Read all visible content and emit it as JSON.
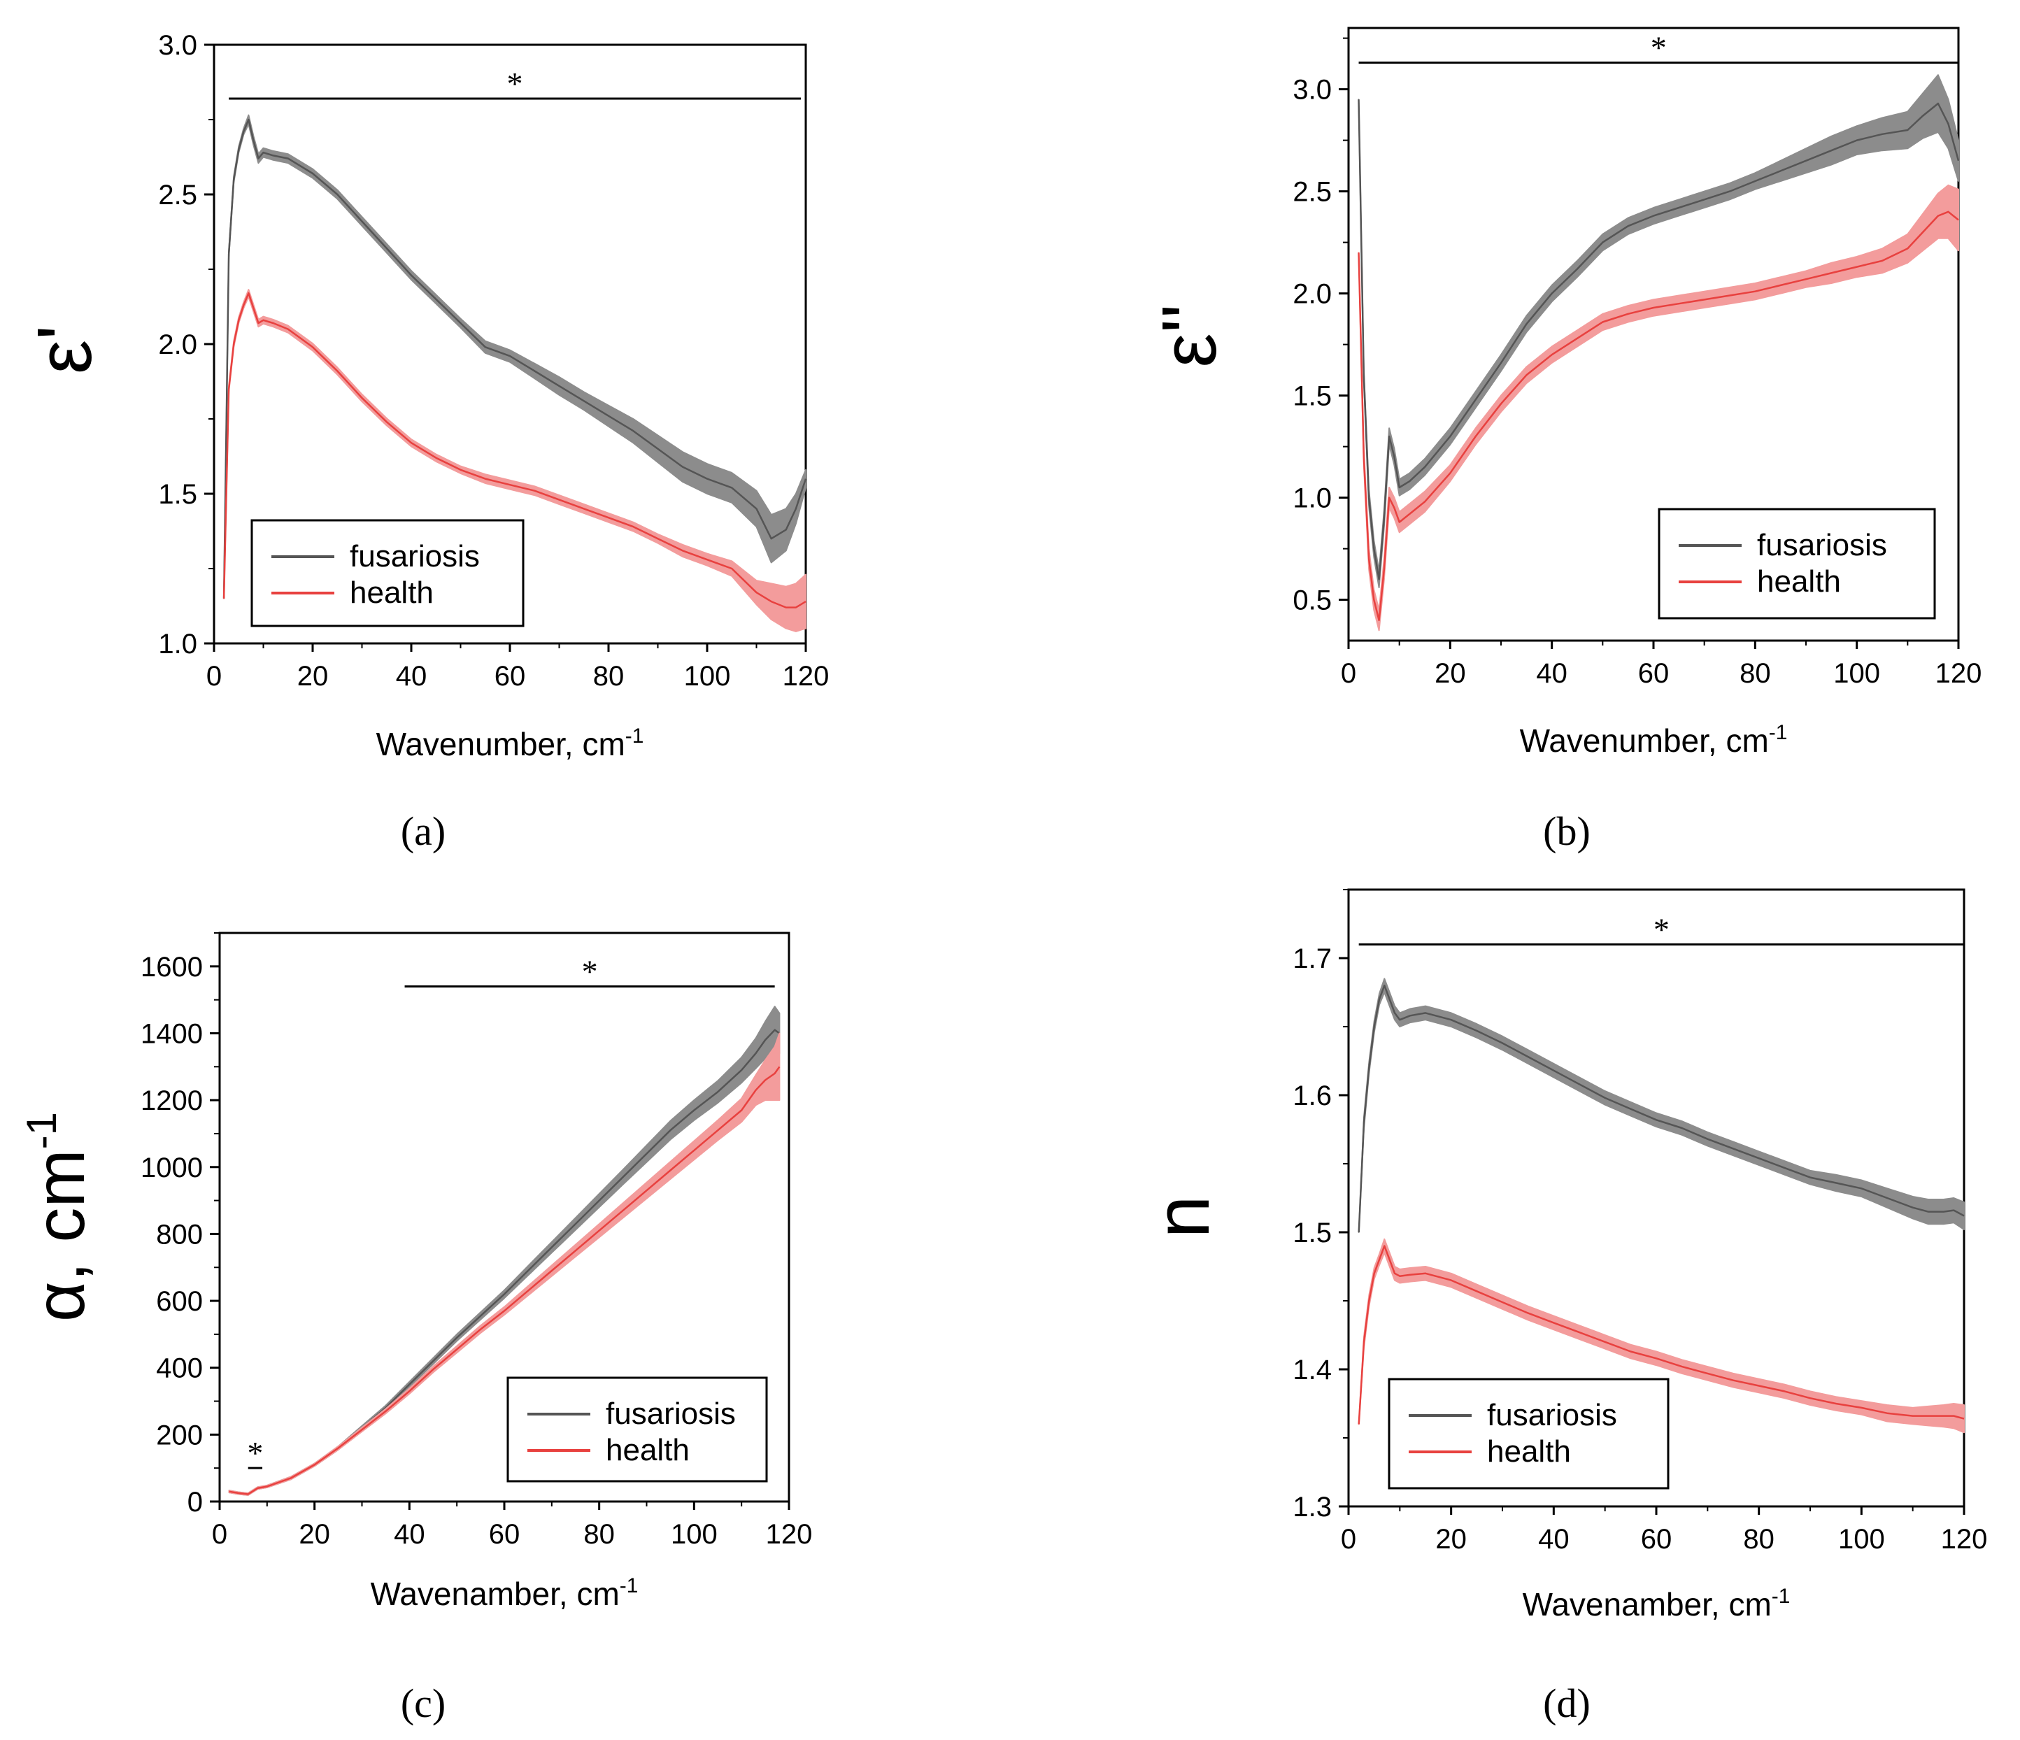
{
  "figure": {
    "labels": [
      "(a)",
      "(b)",
      "(c)",
      "(d)"
    ]
  },
  "colors": {
    "fusariosis_line": "#555555",
    "fusariosis_band": "#8c8c8c",
    "health_line": "#e8413f",
    "health_band": "#f39c9c",
    "axis": "#000000"
  },
  "chart_data": [
    {
      "id": "a",
      "type": "line",
      "panel_label": "(a)",
      "title": "",
      "xlabel": "Wavenumber, cm",
      "xlabel_sup": "-1",
      "ylabel": "ε'",
      "xlim": [
        0,
        120
      ],
      "ylim": [
        1.0,
        3.0
      ],
      "xticks": [
        0,
        20,
        40,
        60,
        80,
        100,
        120
      ],
      "xtick_labels": [
        "0",
        "20",
        "40",
        "60",
        "80",
        "100",
        "120"
      ],
      "yticks": [
        1.0,
        1.5,
        2.0,
        2.5,
        3.0
      ],
      "ytick_labels": [
        "1.0",
        "1.5",
        "2.0",
        "2.5",
        "3.0"
      ],
      "legend_position": "bottom-left",
      "significance": [
        {
          "from": 3,
          "to": 119,
          "y": 2.82,
          "label": "*"
        }
      ],
      "series": [
        {
          "name": "fusariosis",
          "x": [
            2,
            3,
            4,
            5,
            6,
            7,
            8,
            9,
            10,
            12,
            15,
            20,
            25,
            30,
            35,
            40,
            45,
            50,
            55,
            60,
            65,
            70,
            75,
            80,
            85,
            90,
            95,
            100,
            105,
            110,
            113,
            116,
            118,
            120
          ],
          "values": [
            1.15,
            2.3,
            2.55,
            2.65,
            2.71,
            2.75,
            2.68,
            2.62,
            2.64,
            2.63,
            2.62,
            2.57,
            2.5,
            2.41,
            2.32,
            2.23,
            2.15,
            2.07,
            1.99,
            1.96,
            1.91,
            1.86,
            1.81,
            1.76,
            1.71,
            1.65,
            1.59,
            1.55,
            1.52,
            1.45,
            1.35,
            1.38,
            1.45,
            1.55
          ],
          "err": [
            0,
            0.01,
            0.01,
            0.01,
            0.01,
            0.015,
            0.015,
            0.015,
            0.015,
            0.015,
            0.015,
            0.015,
            0.015,
            0.015,
            0.015,
            0.015,
            0.015,
            0.015,
            0.02,
            0.02,
            0.025,
            0.03,
            0.03,
            0.035,
            0.04,
            0.045,
            0.05,
            0.05,
            0.05,
            0.06,
            0.08,
            0.07,
            0.05,
            0.03
          ]
        },
        {
          "name": "health",
          "x": [
            2,
            3,
            4,
            5,
            6,
            7,
            8,
            9,
            10,
            12,
            15,
            20,
            25,
            30,
            35,
            40,
            45,
            50,
            55,
            60,
            65,
            70,
            75,
            80,
            85,
            90,
            95,
            100,
            105,
            110,
            113,
            116,
            118,
            120
          ],
          "values": [
            1.15,
            1.85,
            2.0,
            2.08,
            2.13,
            2.17,
            2.12,
            2.07,
            2.08,
            2.07,
            2.05,
            1.99,
            1.91,
            1.82,
            1.74,
            1.67,
            1.62,
            1.58,
            1.55,
            1.53,
            1.51,
            1.48,
            1.45,
            1.42,
            1.39,
            1.35,
            1.31,
            1.28,
            1.25,
            1.17,
            1.14,
            1.12,
            1.12,
            1.14
          ],
          "err": [
            0,
            0.01,
            0.01,
            0.01,
            0.01,
            0.012,
            0.012,
            0.012,
            0.012,
            0.012,
            0.012,
            0.012,
            0.012,
            0.012,
            0.012,
            0.012,
            0.012,
            0.012,
            0.015,
            0.015,
            0.015,
            0.015,
            0.015,
            0.015,
            0.015,
            0.015,
            0.02,
            0.02,
            0.025,
            0.04,
            0.06,
            0.07,
            0.08,
            0.09
          ]
        }
      ]
    },
    {
      "id": "b",
      "type": "line",
      "panel_label": "(b)",
      "title": "",
      "xlabel": "Wavenumber, cm",
      "xlabel_sup": "-1",
      "ylabel": "ε''",
      "xlim": [
        0,
        120
      ],
      "ylim": [
        0.3,
        3.3
      ],
      "xticks": [
        0,
        20,
        40,
        60,
        80,
        100,
        120
      ],
      "xtick_labels": [
        "0",
        "20",
        "40",
        "60",
        "80",
        "100",
        "120"
      ],
      "yticks": [
        0.5,
        1.0,
        1.5,
        2.0,
        2.5,
        3.0
      ],
      "ytick_labels": [
        "0.5",
        "1.0",
        "1.5",
        "2.0",
        "2.5",
        "3.0"
      ],
      "legend_position": "bottom-right",
      "significance": [
        {
          "from": 2,
          "to": 120,
          "y": 3.13,
          "label": "*"
        }
      ],
      "series": [
        {
          "name": "fusariosis",
          "x": [
            2,
            3,
            4,
            5,
            6,
            7,
            8,
            9,
            10,
            12,
            15,
            20,
            25,
            30,
            35,
            40,
            45,
            50,
            55,
            60,
            65,
            70,
            75,
            80,
            85,
            90,
            95,
            100,
            105,
            110,
            113,
            116,
            118,
            120
          ],
          "values": [
            2.95,
            1.6,
            1.0,
            0.75,
            0.6,
            0.9,
            1.3,
            1.2,
            1.05,
            1.08,
            1.15,
            1.3,
            1.48,
            1.66,
            1.85,
            2.0,
            2.12,
            2.25,
            2.33,
            2.38,
            2.42,
            2.46,
            2.5,
            2.55,
            2.6,
            2.65,
            2.7,
            2.75,
            2.78,
            2.8,
            2.87,
            2.93,
            2.83,
            2.65
          ],
          "err": [
            0,
            0.03,
            0.04,
            0.04,
            0.04,
            0.04,
            0.04,
            0.04,
            0.04,
            0.04,
            0.04,
            0.04,
            0.04,
            0.04,
            0.04,
            0.04,
            0.04,
            0.04,
            0.04,
            0.04,
            0.04,
            0.04,
            0.04,
            0.04,
            0.05,
            0.06,
            0.07,
            0.07,
            0.08,
            0.09,
            0.11,
            0.14,
            0.12,
            0.1
          ]
        },
        {
          "name": "health",
          "x": [
            2,
            3,
            4,
            5,
            6,
            7,
            8,
            9,
            10,
            12,
            15,
            20,
            25,
            30,
            35,
            40,
            45,
            50,
            55,
            60,
            65,
            70,
            75,
            80,
            85,
            90,
            95,
            100,
            105,
            110,
            113,
            116,
            118,
            120
          ],
          "values": [
            2.2,
            1.2,
            0.7,
            0.5,
            0.4,
            0.65,
            1.0,
            0.95,
            0.88,
            0.92,
            0.98,
            1.12,
            1.3,
            1.46,
            1.6,
            1.7,
            1.78,
            1.86,
            1.9,
            1.93,
            1.95,
            1.97,
            1.99,
            2.01,
            2.04,
            2.07,
            2.1,
            2.13,
            2.16,
            2.22,
            2.3,
            2.38,
            2.4,
            2.36
          ],
          "err": [
            0,
            0.04,
            0.05,
            0.05,
            0.05,
            0.05,
            0.05,
            0.05,
            0.05,
            0.05,
            0.05,
            0.04,
            0.04,
            0.04,
            0.04,
            0.04,
            0.04,
            0.04,
            0.04,
            0.04,
            0.04,
            0.04,
            0.04,
            0.04,
            0.04,
            0.04,
            0.05,
            0.05,
            0.06,
            0.07,
            0.09,
            0.11,
            0.13,
            0.15
          ]
        }
      ]
    },
    {
      "id": "c",
      "type": "line",
      "panel_label": "(c)",
      "title": "",
      "xlabel": "Wavenamber, cm",
      "xlabel_sup": "-1",
      "ylabel": "α, cm",
      "ylabel_sup": "-1",
      "xlim": [
        0,
        120
      ],
      "ylim": [
        0,
        1700
      ],
      "xticks": [
        0,
        20,
        40,
        60,
        80,
        100,
        120
      ],
      "xtick_labels": [
        "0",
        "20",
        "40",
        "60",
        "80",
        "100",
        "120"
      ],
      "yticks": [
        0,
        200,
        400,
        600,
        800,
        1000,
        1200,
        1400,
        1600
      ],
      "ytick_labels": [
        "0",
        "200",
        "400",
        "600",
        "800",
        "1000",
        "1200",
        "1400",
        "1600"
      ],
      "legend_position": "bottom-right",
      "significance": [
        {
          "from": 39,
          "to": 117,
          "y": 1540,
          "label": "*"
        },
        {
          "from": 6,
          "to": 9,
          "y": 100,
          "label": "*"
        }
      ],
      "series": [
        {
          "name": "fusariosis",
          "x": [
            2,
            4,
            6,
            8,
            10,
            15,
            20,
            25,
            30,
            35,
            40,
            45,
            50,
            55,
            60,
            65,
            70,
            75,
            80,
            85,
            90,
            95,
            100,
            105,
            110,
            113,
            115,
            117,
            118
          ],
          "values": [
            30,
            25,
            22,
            40,
            45,
            70,
            110,
            160,
            220,
            280,
            350,
            420,
            490,
            555,
            620,
            690,
            760,
            830,
            900,
            970,
            1040,
            1110,
            1170,
            1225,
            1290,
            1340,
            1380,
            1410,
            1400
          ],
          "err": [
            3,
            3,
            3,
            3,
            3,
            4,
            4,
            5,
            6,
            7,
            8,
            9,
            10,
            11,
            12,
            14,
            16,
            18,
            20,
            22,
            25,
            28,
            30,
            33,
            38,
            45,
            55,
            70,
            60
          ]
        },
        {
          "name": "health",
          "x": [
            2,
            4,
            6,
            8,
            10,
            15,
            20,
            25,
            30,
            35,
            40,
            45,
            50,
            55,
            60,
            65,
            70,
            75,
            80,
            85,
            90,
            95,
            100,
            105,
            110,
            113,
            115,
            117,
            118
          ],
          "values": [
            30,
            25,
            22,
            40,
            45,
            70,
            110,
            160,
            215,
            270,
            330,
            395,
            455,
            515,
            570,
            630,
            690,
            750,
            810,
            870,
            930,
            990,
            1050,
            1110,
            1170,
            1230,
            1260,
            1280,
            1300
          ],
          "err": [
            3,
            3,
            3,
            3,
            3,
            4,
            4,
            5,
            6,
            7,
            8,
            9,
            10,
            11,
            12,
            14,
            16,
            18,
            20,
            22,
            24,
            26,
            28,
            30,
            35,
            45,
            60,
            80,
            100
          ]
        }
      ]
    },
    {
      "id": "d",
      "type": "line",
      "panel_label": "(d)",
      "title": "",
      "xlabel": "Wavenamber, cm",
      "xlabel_sup": "-1",
      "ylabel": "n",
      "xlim": [
        0,
        120
      ],
      "ylim": [
        1.3,
        1.75
      ],
      "xticks": [
        0,
        20,
        40,
        60,
        80,
        100,
        120
      ],
      "xtick_labels": [
        "0",
        "20",
        "40",
        "60",
        "80",
        "100",
        "120"
      ],
      "yticks": [
        1.3,
        1.4,
        1.5,
        1.6,
        1.7
      ],
      "ytick_labels": [
        "1.3",
        "1.4",
        "1.5",
        "1.6",
        "1.7"
      ],
      "legend_position": "bottom-left",
      "significance": [
        {
          "from": 2,
          "to": 120,
          "y": 1.71,
          "label": "*"
        }
      ],
      "series": [
        {
          "name": "fusariosis",
          "x": [
            2,
            3,
            4,
            5,
            6,
            7,
            8,
            9,
            10,
            12,
            15,
            20,
            25,
            30,
            35,
            40,
            45,
            50,
            55,
            60,
            65,
            70,
            75,
            80,
            85,
            90,
            95,
            100,
            105,
            110,
            113,
            116,
            118,
            120
          ],
          "values": [
            1.5,
            1.58,
            1.62,
            1.65,
            1.67,
            1.68,
            1.67,
            1.66,
            1.655,
            1.658,
            1.66,
            1.655,
            1.647,
            1.638,
            1.628,
            1.618,
            1.608,
            1.598,
            1.59,
            1.582,
            1.576,
            1.568,
            1.561,
            1.554,
            1.547,
            1.54,
            1.536,
            1.532,
            1.525,
            1.518,
            1.515,
            1.515,
            1.516,
            1.512
          ],
          "err": [
            0,
            0.004,
            0.004,
            0.004,
            0.004,
            0.005,
            0.005,
            0.005,
            0.005,
            0.005,
            0.005,
            0.005,
            0.005,
            0.005,
            0.005,
            0.005,
            0.005,
            0.005,
            0.005,
            0.005,
            0.005,
            0.005,
            0.005,
            0.005,
            0.005,
            0.005,
            0.006,
            0.006,
            0.007,
            0.008,
            0.009,
            0.009,
            0.009,
            0.01
          ]
        },
        {
          "name": "health",
          "x": [
            2,
            3,
            4,
            5,
            6,
            7,
            8,
            9,
            10,
            12,
            15,
            20,
            25,
            30,
            35,
            40,
            45,
            50,
            55,
            60,
            65,
            70,
            75,
            80,
            85,
            90,
            95,
            100,
            105,
            110,
            113,
            116,
            118,
            120
          ],
          "values": [
            1.36,
            1.42,
            1.45,
            1.47,
            1.48,
            1.49,
            1.48,
            1.47,
            1.468,
            1.469,
            1.47,
            1.465,
            1.457,
            1.449,
            1.441,
            1.434,
            1.427,
            1.42,
            1.413,
            1.408,
            1.402,
            1.397,
            1.392,
            1.388,
            1.384,
            1.379,
            1.375,
            1.372,
            1.368,
            1.366,
            1.366,
            1.366,
            1.366,
            1.364
          ],
          "err": [
            0,
            0.004,
            0.004,
            0.004,
            0.004,
            0.005,
            0.005,
            0.005,
            0.005,
            0.005,
            0.005,
            0.005,
            0.005,
            0.005,
            0.005,
            0.005,
            0.005,
            0.005,
            0.005,
            0.005,
            0.005,
            0.005,
            0.005,
            0.005,
            0.005,
            0.005,
            0.005,
            0.005,
            0.006,
            0.006,
            0.007,
            0.008,
            0.009,
            0.01
          ]
        }
      ]
    }
  ]
}
